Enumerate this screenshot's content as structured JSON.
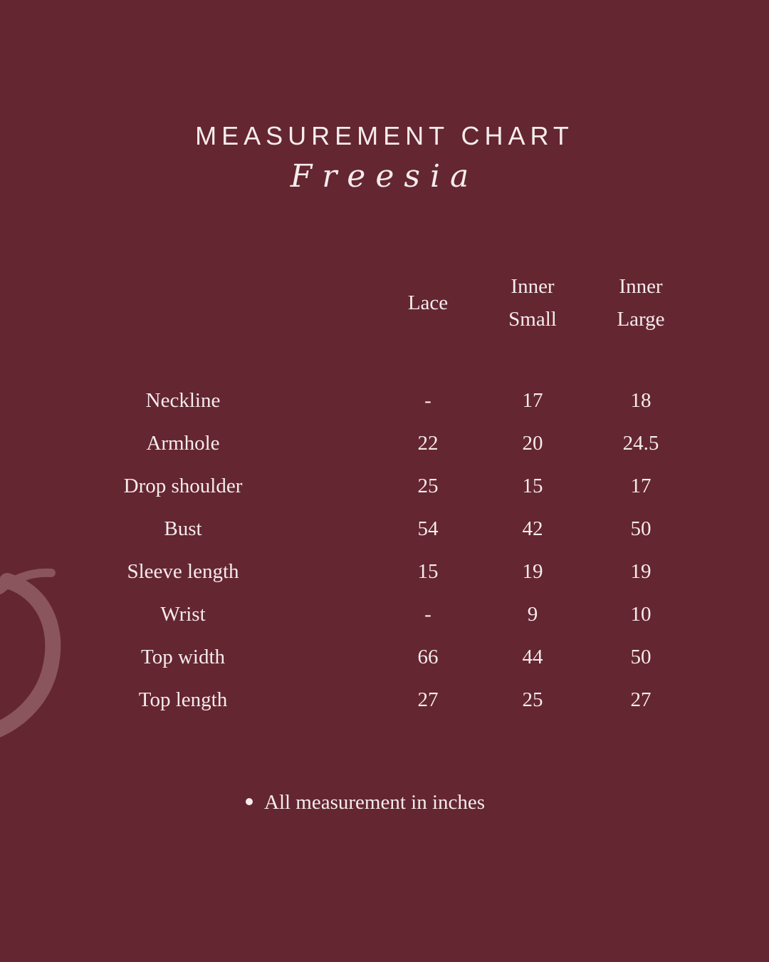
{
  "header": {
    "title": "MEASUREMENT CHART",
    "subtitle": "Freesia"
  },
  "table": {
    "columns": [
      {
        "line1": "",
        "line2": "Lace"
      },
      {
        "line1": "Inner",
        "line2": "Small"
      },
      {
        "line1": "Inner",
        "line2": "Large"
      }
    ],
    "rows": [
      {
        "label": "Neckline",
        "values": [
          "-",
          "17",
          "18"
        ]
      },
      {
        "label": "Armhole",
        "values": [
          "22",
          "20",
          "24.5"
        ]
      },
      {
        "label": "Drop shoulder",
        "values": [
          "25",
          "15",
          "17"
        ]
      },
      {
        "label": "Bust",
        "values": [
          "54",
          "42",
          "50"
        ]
      },
      {
        "label": "Sleeve length",
        "values": [
          "15",
          "19",
          "19"
        ]
      },
      {
        "label": "Wrist",
        "values": [
          "-",
          "9",
          "10"
        ]
      },
      {
        "label": "Top width",
        "values": [
          "66",
          "44",
          "50"
        ]
      },
      {
        "label": "Top length",
        "values": [
          "27",
          "25",
          "27"
        ]
      }
    ]
  },
  "footnote": "All measurement in inches",
  "colors": {
    "background": "#642631",
    "text": "#f5eceb",
    "decoration": "#8a555c"
  }
}
